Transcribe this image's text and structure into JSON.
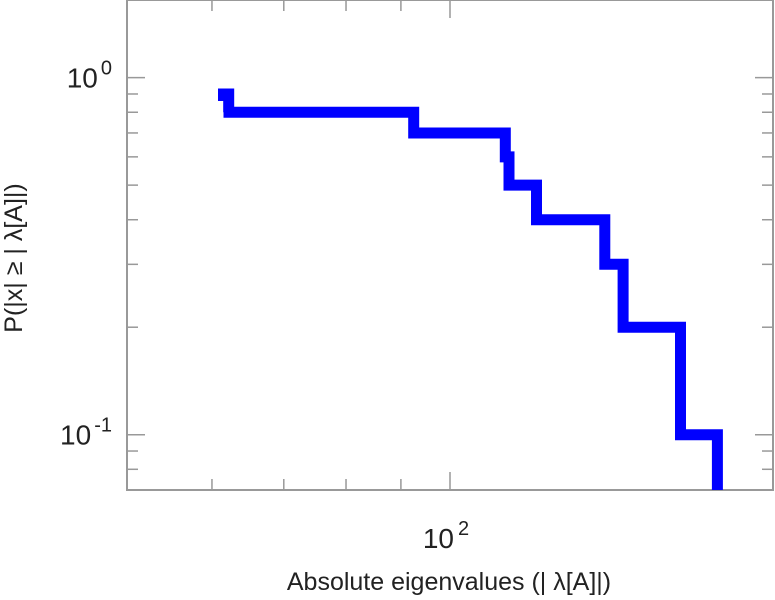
{
  "chart_data": {
    "type": "line",
    "step": true,
    "xscale": "log",
    "yscale": "log",
    "xlim": [
      50,
      200
    ],
    "ylim": [
      0.07,
      1.65
    ],
    "xlabel": "Absolute eigenvalues (|      λ[A]|)",
    "ylabel": "P(|x|  ≥ | λ[A]|)",
    "color": "#0000ff",
    "x_ticks": [
      {
        "value": 100,
        "base": "10",
        "exp": "2"
      }
    ],
    "y_ticks": [
      {
        "value": 1,
        "base": "10",
        "exp": "0"
      },
      {
        "value": 0.1,
        "base": "10",
        "exp": "-1"
      }
    ],
    "series": [
      {
        "x": [
          61.5,
          61.5,
          62.2,
          62.2,
          61.5,
          61.5,
          92.5,
          92.5,
          112.6,
          112.6,
          113.5,
          113.5,
          120.4,
          120.4,
          139.4,
          139.4,
          145,
          145,
          164,
          164,
          177.5,
          177.5
        ],
        "y": [
          0.86,
          0.9,
          0.9,
          0.8,
          0.8,
          0.8,
          0.8,
          0.7,
          0.7,
          0.6,
          0.6,
          0.5,
          0.5,
          0.4,
          0.4,
          0.3,
          0.3,
          0.2,
          0.2,
          0.1,
          0.1,
          0.07
        ]
      }
    ]
  }
}
